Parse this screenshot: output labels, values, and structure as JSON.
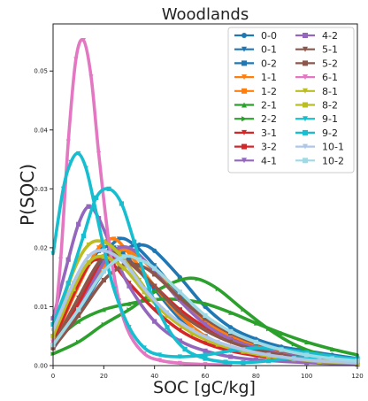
{
  "chart_data": {
    "type": "line",
    "title": "Woodlands",
    "xlabel": "SOC [gC/kg]",
    "ylabel": "P(SOC)",
    "xlim": [
      0,
      120
    ],
    "ylim": [
      0,
      0.058
    ],
    "x_ticks": [
      "0",
      "20",
      "40",
      "60",
      "80",
      "100",
      "120"
    ],
    "y_ticks": [
      "0.00",
      "0.01",
      "0.02",
      "0.03",
      "0.04",
      "0.05"
    ],
    "legend_position": "top-right",
    "grid": false,
    "series": [
      {
        "name": "0-0",
        "color": "#1f77b4",
        "marker": "circle",
        "x": [
          0,
          10,
          20,
          28,
          34,
          40,
          50,
          60,
          70,
          80,
          90,
          100,
          110,
          120
        ],
        "y": [
          0.003,
          0.009,
          0.016,
          0.0195,
          0.0205,
          0.0195,
          0.015,
          0.01,
          0.0065,
          0.0045,
          0.0032,
          0.0025,
          0.0018,
          0.0012
        ]
      },
      {
        "name": "0-1",
        "color": "#1f77b4",
        "marker": "triangle-down",
        "x": [
          0,
          10,
          20,
          26,
          32,
          40,
          50,
          60,
          70,
          80,
          90,
          100,
          110,
          120
        ],
        "y": [
          0.0035,
          0.011,
          0.0185,
          0.0215,
          0.0205,
          0.017,
          0.012,
          0.0075,
          0.005,
          0.0035,
          0.0025,
          0.0018,
          0.0012,
          0.0008
        ]
      },
      {
        "name": "0-2",
        "color": "#1f77b4",
        "marker": "square",
        "x": [
          0,
          10,
          18,
          24,
          30,
          40,
          50,
          60,
          70,
          80,
          90,
          100,
          110,
          120
        ],
        "y": [
          0.005,
          0.014,
          0.0195,
          0.02,
          0.018,
          0.013,
          0.008,
          0.005,
          0.003,
          0.002,
          0.0014,
          0.001,
          0.0007,
          0.0005
        ]
      },
      {
        "name": "1-1",
        "color": "#ff7f0e",
        "marker": "triangle-down",
        "x": [
          0,
          10,
          18,
          24,
          30,
          40,
          50,
          60,
          70,
          80,
          90,
          100,
          110,
          120
        ],
        "y": [
          0.004,
          0.0135,
          0.02,
          0.0215,
          0.019,
          0.0135,
          0.0085,
          0.005,
          0.003,
          0.002,
          0.0013,
          0.0009,
          0.0006,
          0.0004
        ]
      },
      {
        "name": "1-2",
        "color": "#ff7f0e",
        "marker": "square",
        "x": [
          0,
          10,
          20,
          26,
          32,
          40,
          50,
          60,
          70,
          80,
          90,
          100,
          110,
          120
        ],
        "y": [
          0.003,
          0.0095,
          0.017,
          0.0195,
          0.019,
          0.016,
          0.0115,
          0.0075,
          0.005,
          0.0033,
          0.0023,
          0.0016,
          0.0011,
          0.0007
        ]
      },
      {
        "name": "2-1",
        "color": "#2ca02c",
        "marker": "triangle-up",
        "x": [
          0,
          10,
          20,
          30,
          40,
          50,
          60,
          70,
          80,
          90,
          100,
          110,
          120
        ],
        "y": [
          0.004,
          0.0075,
          0.0095,
          0.0105,
          0.0112,
          0.0112,
          0.0105,
          0.009,
          0.0072,
          0.0055,
          0.004,
          0.0028,
          0.0018
        ]
      },
      {
        "name": "2-2",
        "color": "#2ca02c",
        "marker": "triangle-right",
        "x": [
          0,
          10,
          20,
          30,
          40,
          50,
          57,
          65,
          75,
          85,
          95,
          105,
          120
        ],
        "y": [
          0.002,
          0.004,
          0.007,
          0.0095,
          0.0125,
          0.0145,
          0.0147,
          0.013,
          0.0095,
          0.0062,
          0.0036,
          0.002,
          0.0008
        ]
      },
      {
        "name": "3-1",
        "color": "#d62728",
        "marker": "triangle-down",
        "x": [
          0,
          8,
          14,
          18,
          24,
          30,
          40,
          50,
          60,
          70,
          80,
          90,
          100,
          120
        ],
        "y": [
          0.004,
          0.012,
          0.017,
          0.018,
          0.017,
          0.014,
          0.0095,
          0.006,
          0.0038,
          0.0025,
          0.0017,
          0.0012,
          0.0008,
          0.0004
        ]
      },
      {
        "name": "3-2",
        "color": "#d62728",
        "marker": "square",
        "x": [
          0,
          10,
          18,
          24,
          30,
          40,
          50,
          60,
          70,
          80,
          90,
          100,
          110,
          120
        ],
        "y": [
          0.0035,
          0.0105,
          0.0165,
          0.0185,
          0.0175,
          0.0135,
          0.0095,
          0.0065,
          0.0045,
          0.003,
          0.002,
          0.0014,
          0.001,
          0.0007
        ]
      },
      {
        "name": "4-1",
        "color": "#9467bd",
        "marker": "triangle-down",
        "x": [
          0,
          10,
          20,
          26,
          32,
          40,
          50,
          60,
          70,
          80,
          90,
          100,
          110,
          120
        ],
        "y": [
          0.0028,
          0.0095,
          0.0175,
          0.02,
          0.0195,
          0.016,
          0.011,
          0.007,
          0.0045,
          0.003,
          0.002,
          0.0014,
          0.0009,
          0.0006
        ]
      },
      {
        "name": "4-2",
        "color": "#9467bd",
        "marker": "square",
        "x": [
          0,
          6,
          10,
          14,
          18,
          24,
          30,
          40,
          50,
          60,
          70,
          80,
          100,
          120
        ],
        "y": [
          0.008,
          0.018,
          0.024,
          0.027,
          0.025,
          0.019,
          0.0135,
          0.0075,
          0.0042,
          0.0025,
          0.0015,
          0.001,
          0.0005,
          0.0002
        ]
      },
      {
        "name": "5-1",
        "color": "#8c564b",
        "marker": "triangle-down",
        "x": [
          0,
          10,
          18,
          24,
          30,
          40,
          50,
          60,
          70,
          80,
          90,
          100,
          110,
          120
        ],
        "y": [
          0.0035,
          0.0115,
          0.0175,
          0.019,
          0.0175,
          0.0135,
          0.009,
          0.006,
          0.004,
          0.0027,
          0.0018,
          0.0012,
          0.0008,
          0.0005
        ]
      },
      {
        "name": "5-2",
        "color": "#8c564b",
        "marker": "square",
        "x": [
          0,
          10,
          20,
          28,
          34,
          40,
          50,
          60,
          70,
          80,
          90,
          100,
          110,
          120
        ],
        "y": [
          0.003,
          0.0085,
          0.0145,
          0.017,
          0.017,
          0.0155,
          0.0115,
          0.008,
          0.0055,
          0.0038,
          0.0026,
          0.0018,
          0.0012,
          0.0008
        ]
      },
      {
        "name": "6-1",
        "color": "#e377c2",
        "marker": "triangle-down",
        "x": [
          0,
          3,
          6,
          9,
          12,
          15,
          18,
          22,
          26,
          30,
          36,
          42,
          50,
          60,
          70
        ],
        "y": [
          0.004,
          0.018,
          0.038,
          0.052,
          0.0552,
          0.049,
          0.036,
          0.021,
          0.011,
          0.0055,
          0.002,
          0.0009,
          0.0004,
          0.0002,
          0.0001
        ]
      },
      {
        "name": "8-1",
        "color": "#bcbd22",
        "marker": "triangle-down",
        "x": [
          0,
          8,
          14,
          20,
          26,
          34,
          40,
          50,
          60,
          70,
          80,
          90,
          100,
          120
        ],
        "y": [
          0.006,
          0.016,
          0.0205,
          0.021,
          0.019,
          0.0145,
          0.011,
          0.007,
          0.0045,
          0.003,
          0.002,
          0.0014,
          0.001,
          0.0005
        ]
      },
      {
        "name": "8-2",
        "color": "#bcbd22",
        "marker": "square",
        "x": [
          0,
          8,
          14,
          20,
          28,
          36,
          45,
          55,
          65,
          75,
          85,
          95,
          105,
          120
        ],
        "y": [
          0.005,
          0.013,
          0.0175,
          0.0185,
          0.0165,
          0.0125,
          0.0085,
          0.0055,
          0.0036,
          0.0024,
          0.0016,
          0.0011,
          0.0007,
          0.0004
        ]
      },
      {
        "name": "9-1",
        "color": "#17becf",
        "marker": "triangle-down",
        "x": [
          0,
          4,
          7,
          10,
          13,
          16,
          20,
          24,
          30,
          36,
          42,
          50,
          60,
          70,
          80,
          90,
          100,
          120
        ],
        "y": [
          0.019,
          0.03,
          0.0345,
          0.036,
          0.0335,
          0.028,
          0.02,
          0.013,
          0.0065,
          0.003,
          0.0018,
          0.0015,
          0.0018,
          0.0025,
          0.003,
          0.0028,
          0.0022,
          0.001
        ]
      },
      {
        "name": "9-2",
        "color": "#17becf",
        "marker": "square",
        "x": [
          0,
          6,
          12,
          17,
          22,
          27,
          32,
          38,
          45,
          52,
          60,
          68,
          75,
          85,
          95,
          110,
          120
        ],
        "y": [
          0.007,
          0.014,
          0.022,
          0.0285,
          0.03,
          0.0275,
          0.021,
          0.013,
          0.0065,
          0.0028,
          0.0012,
          0.0006,
          0.0005,
          0.0008,
          0.0013,
          0.0013,
          0.0012
        ]
      },
      {
        "name": "10-1",
        "color": "#aec7e8",
        "marker": "triangle-down",
        "x": [
          0,
          8,
          14,
          20,
          28,
          36,
          45,
          55,
          65,
          75,
          85,
          95,
          105,
          120
        ],
        "y": [
          0.006,
          0.014,
          0.0185,
          0.0195,
          0.0175,
          0.013,
          0.009,
          0.006,
          0.004,
          0.0027,
          0.0018,
          0.0012,
          0.0008,
          0.0005
        ]
      },
      {
        "name": "10-2",
        "color": "#9edae5",
        "marker": "square",
        "x": [
          0,
          10,
          20,
          28,
          34,
          40,
          50,
          60,
          70,
          80,
          90,
          100,
          110,
          120
        ],
        "y": [
          0.0035,
          0.0095,
          0.016,
          0.0185,
          0.018,
          0.0165,
          0.0125,
          0.0085,
          0.0058,
          0.004,
          0.0027,
          0.0018,
          0.0012,
          0.0008
        ]
      }
    ]
  }
}
